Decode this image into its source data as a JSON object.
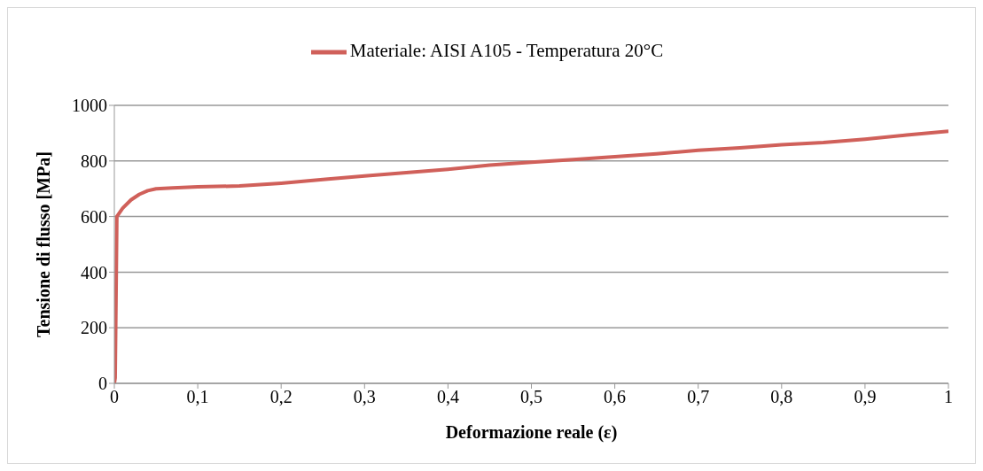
{
  "chart_data": {
    "type": "line",
    "xlabel": "Deformazione reale (ε)",
    "ylabel": "Tensione di flusso [MPa]",
    "x": [
      0,
      0.001,
      0.002,
      0.003,
      0.01,
      0.02,
      0.03,
      0.04,
      0.05,
      0.07,
      0.1,
      0.15,
      0.2,
      0.25,
      0.3,
      0.35,
      0.4,
      0.45,
      0.5,
      0.55,
      0.6,
      0.65,
      0.7,
      0.75,
      0.8,
      0.85,
      0.9,
      0.95,
      1
    ],
    "series": [
      {
        "name": "Materiale: AISI A105 - Temperatura 20°C",
        "color": "#d0605a",
        "values": [
          0,
          20,
          300,
          600,
          630,
          660,
          680,
          693,
          700,
          703,
          707,
          710,
          720,
          733,
          746,
          758,
          770,
          785,
          795,
          805,
          815,
          826,
          838,
          847,
          858,
          866,
          878,
          893,
          907
        ]
      }
    ],
    "xlim": [
      0,
      1
    ],
    "xticks": [
      0,
      {
        "value": 0.1,
        "label": "0,1"
      },
      {
        "value": 0.2,
        "label": "0,2"
      },
      {
        "value": 0.3,
        "label": "0,3"
      },
      {
        "value": 0.4,
        "label": "0,4"
      },
      {
        "value": 0.5,
        "label": "0,5"
      },
      {
        "value": 0.6,
        "label": "0,6"
      },
      {
        "value": 0.7,
        "label": "0,7"
      },
      {
        "value": 0.8,
        "label": "0,8"
      },
      {
        "value": 0.9,
        "label": "0,9"
      },
      1
    ],
    "ylim": [
      0,
      1000
    ],
    "yticks": [
      0,
      200,
      400,
      600,
      800,
      1000
    ],
    "grid": "y",
    "legend": "top",
    "marker": "none",
    "line_style": "solid"
  }
}
